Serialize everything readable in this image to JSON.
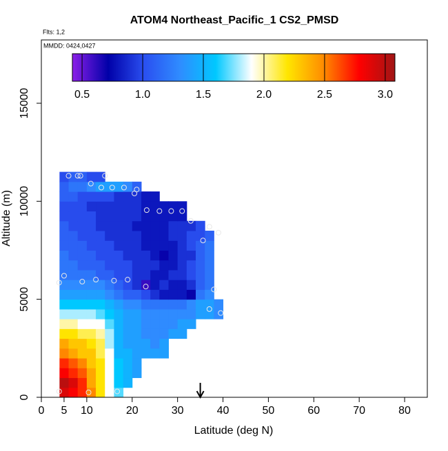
{
  "chart_data": {
    "type": "heatmap",
    "title": "ATOM4 Northeast_Pacific_1 CS2_PMSD",
    "flights": "Flts: 1,2",
    "dates": "MMDD: 0424,0427",
    "x_label": "Latitude (deg N)",
    "y_label": "Altitude (m)",
    "xlim": [
      0,
      85
    ],
    "ylim": [
      0,
      18230
    ],
    "xticks": [
      0,
      5,
      10,
      20,
      30,
      40,
      50,
      60,
      70,
      80
    ],
    "yticks": [
      0,
      5000,
      10000,
      15000
    ],
    "x_edges": [
      4,
      6,
      8,
      10,
      12,
      14,
      16,
      18,
      20,
      22,
      24,
      26,
      28,
      30,
      32,
      34,
      36,
      38,
      40
    ],
    "y_edges": [
      0,
      500,
      1000,
      1500,
      2000,
      2500,
      3000,
      3500,
      4000,
      4500,
      5000,
      5500,
      6000,
      6500,
      7000,
      7500,
      8000,
      8500,
      9000,
      9500,
      10000,
      10500,
      11000,
      11500
    ],
    "z": [
      [
        2.9,
        2.8,
        2.7,
        2.5,
        2.2,
        1.9,
        1.7,
        null,
        null,
        null,
        null,
        null,
        null,
        null,
        null,
        null,
        null,
        null
      ],
      [
        3.0,
        2.9,
        2.7,
        2.4,
        2.2,
        1.9,
        1.6,
        1.5,
        null,
        null,
        null,
        null,
        null,
        null,
        null,
        null,
        null,
        null
      ],
      [
        2.8,
        2.7,
        2.6,
        2.4,
        2.2,
        1.9,
        1.6,
        1.5,
        1.4,
        null,
        null,
        null,
        null,
        null,
        null,
        null,
        null,
        null
      ],
      [
        2.7,
        2.6,
        2.5,
        2.3,
        2.2,
        1.9,
        1.6,
        1.5,
        1.4,
        null,
        null,
        null,
        null,
        null,
        null,
        null,
        null,
        null
      ],
      [
        2.5,
        2.4,
        2.3,
        2.3,
        2.1,
        1.9,
        1.5,
        1.5,
        1.4,
        1.4,
        1.4,
        1.4,
        null,
        null,
        null,
        null,
        null,
        null
      ],
      [
        2.4,
        2.3,
        2.3,
        2.2,
        2.1,
        1.8,
        1.5,
        1.4,
        1.4,
        1.4,
        1.3,
        1.4,
        null,
        null,
        null,
        null,
        null,
        null
      ],
      [
        2.2,
        2.2,
        2.1,
        2.1,
        2.0,
        1.8,
        1.5,
        1.4,
        1.4,
        1.3,
        1.3,
        1.3,
        1.4,
        1.4,
        null,
        null,
        null,
        null
      ],
      [
        2.0,
        2.0,
        1.9,
        1.9,
        1.9,
        1.7,
        1.5,
        1.4,
        1.4,
        1.3,
        1.3,
        1.3,
        1.3,
        1.4,
        1.4,
        null,
        null,
        null
      ],
      [
        1.8,
        1.8,
        1.8,
        1.8,
        1.7,
        1.6,
        1.5,
        1.4,
        1.4,
        1.3,
        1.3,
        1.3,
        1.3,
        1.3,
        1.3,
        1.4,
        1.4,
        1.3
      ],
      [
        1.6,
        1.6,
        1.6,
        1.6,
        1.6,
        1.5,
        1.4,
        1.3,
        1.3,
        1.2,
        1.2,
        1.2,
        1.2,
        1.2,
        1.3,
        1.4,
        1.4,
        1.3
      ],
      [
        1.4,
        1.4,
        1.4,
        1.4,
        1.4,
        1.3,
        1.2,
        1.1,
        1.1,
        1.0,
        0.9,
        0.8,
        0.8,
        0.8,
        0.7,
        1.2,
        1.3,
        null
      ],
      [
        1.3,
        1.3,
        1.3,
        1.3,
        1.3,
        1.2,
        1.1,
        1.0,
        0.9,
        0.6,
        0.8,
        0.9,
        0.8,
        0.8,
        0.9,
        1.1,
        1.2,
        null
      ],
      [
        1.2,
        1.2,
        1.2,
        1.2,
        1.1,
        1.1,
        1.0,
        1.0,
        0.9,
        0.9,
        0.8,
        0.8,
        0.9,
        0.9,
        1.0,
        1.1,
        1.2,
        null
      ],
      [
        1.2,
        1.2,
        1.1,
        1.1,
        1.1,
        1.0,
        1.0,
        1.0,
        0.9,
        0.9,
        0.9,
        0.8,
        0.8,
        0.9,
        1.0,
        1.1,
        1.2,
        null
      ],
      [
        1.2,
        1.1,
        1.1,
        1.1,
        1.0,
        1.0,
        1.0,
        0.9,
        0.9,
        0.9,
        0.8,
        0.7,
        0.8,
        0.9,
        0.9,
        1.1,
        1.2,
        null
      ],
      [
        1.1,
        1.1,
        1.1,
        1.0,
        1.0,
        1.0,
        0.9,
        0.9,
        0.9,
        0.8,
        0.8,
        0.8,
        0.8,
        0.9,
        1.0,
        1.1,
        1.2,
        null
      ],
      [
        1.1,
        1.1,
        1.0,
        1.0,
        1.0,
        0.9,
        0.9,
        0.9,
        0.9,
        0.8,
        0.8,
        0.8,
        0.9,
        0.9,
        1.0,
        1.0,
        1.1,
        null
      ],
      [
        1.1,
        1.0,
        1.0,
        1.0,
        0.9,
        0.9,
        0.9,
        0.9,
        0.8,
        0.8,
        0.8,
        0.8,
        0.9,
        0.9,
        0.9,
        1.0,
        null,
        null
      ],
      [
        1.0,
        1.0,
        1.0,
        1.0,
        0.9,
        0.9,
        0.9,
        0.9,
        0.9,
        0.8,
        0.8,
        0.8,
        0.8,
        0.8,
        null,
        null,
        null,
        null
      ],
      [
        1.0,
        1.0,
        1.0,
        0.9,
        0.9,
        0.9,
        0.9,
        0.9,
        0.9,
        0.8,
        0.8,
        0.8,
        0.8,
        0.8,
        null,
        null,
        null,
        null
      ],
      [
        1.1,
        1.1,
        1.0,
        1.0,
        1.0,
        1.0,
        0.9,
        0.9,
        0.9,
        0.8,
        0.8,
        null,
        null,
        null,
        null,
        null,
        null,
        null
      ],
      [
        1.1,
        1.2,
        1.2,
        1.3,
        1.4,
        1.4,
        1.4,
        1.3,
        1.1,
        null,
        null,
        null,
        null,
        null,
        null,
        null,
        null,
        null
      ],
      [
        1.0,
        1.1,
        1.1,
        1.0,
        1.0,
        null,
        null,
        null,
        null,
        null,
        null,
        null,
        null,
        null,
        null,
        null,
        null,
        null
      ]
    ],
    "points": {
      "x": [
        3.9,
        10.4,
        16.7,
        6,
        8,
        8.6,
        14,
        10.9,
        13.2,
        15.6,
        18.2,
        21,
        20.5,
        23.2,
        26,
        28.6,
        31,
        32.9,
        37,
        35.6,
        39,
        5,
        3.9,
        9,
        12,
        16,
        19,
        23,
        38,
        37,
        39.5
      ],
      "y": [
        300,
        250,
        300,
        11300,
        11300,
        11300,
        11300,
        10900,
        10700,
        10700,
        10700,
        10600,
        10400,
        9550,
        9500,
        9500,
        9500,
        9000,
        8700,
        8000,
        8400,
        6200,
        5850,
        5900,
        6000,
        5950,
        6000,
        5650,
        5500,
        4500,
        4300
      ]
    },
    "arrow_lat": 35,
    "colorbar": {
      "lim": [
        0.42,
        3.08
      ],
      "ticks": [
        0.5,
        {
          "value": 1,
          "label": "1.0"
        },
        1.5,
        {
          "value": 2,
          "label": "2.0"
        },
        2.5,
        {
          "value": 3,
          "label": "3.0"
        }
      ],
      "colors": [
        "#8b1fe8",
        "#0000a8",
        "#2a4ff0",
        "#2f8cff",
        "#00c8ff",
        "#ffffff",
        "#ffe600",
        "#ff8c00",
        "#ff0000",
        "#a01515"
      ]
    }
  }
}
